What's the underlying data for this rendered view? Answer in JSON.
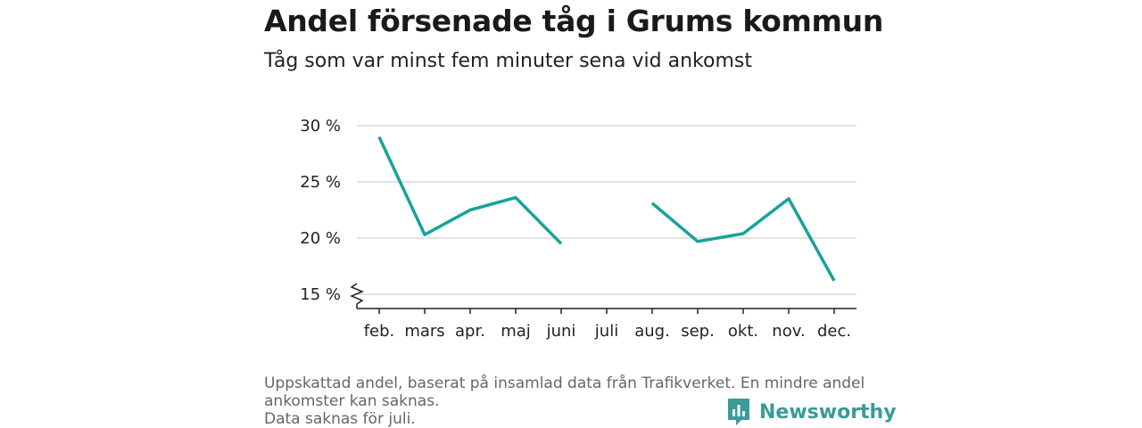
{
  "header": {
    "title": "Andel försenade tåg i Grums kommun",
    "subtitle": "Tåg som var minst fem minuter sena vid ankomst"
  },
  "chart_data": {
    "type": "line",
    "categories": [
      "feb.",
      "mars",
      "apr.",
      "maj",
      "juni",
      "juli",
      "aug.",
      "sep.",
      "okt.",
      "nov.",
      "dec."
    ],
    "series": [
      {
        "values": [
          29.0,
          20.3,
          22.5,
          23.6,
          19.5,
          null,
          23.1,
          19.7,
          20.4,
          23.5,
          16.2
        ]
      }
    ],
    "yticks": [
      15,
      20,
      25,
      30
    ],
    "ytick_labels": [
      "15 %",
      "20 %",
      "25 %",
      "30 %"
    ],
    "ylim": [
      15,
      30
    ],
    "y_axis_break": true,
    "grid": true,
    "line_color": "#17a398"
  },
  "footer": {
    "note_lines": [
      "Uppskattad andel, baserat på insamlad data från Trafikverket. En mindre andel",
      "ankomster kan saknas.",
      "Data saknas för juli."
    ],
    "brand": "Newsworthy",
    "brand_color": "#3a9b98"
  }
}
